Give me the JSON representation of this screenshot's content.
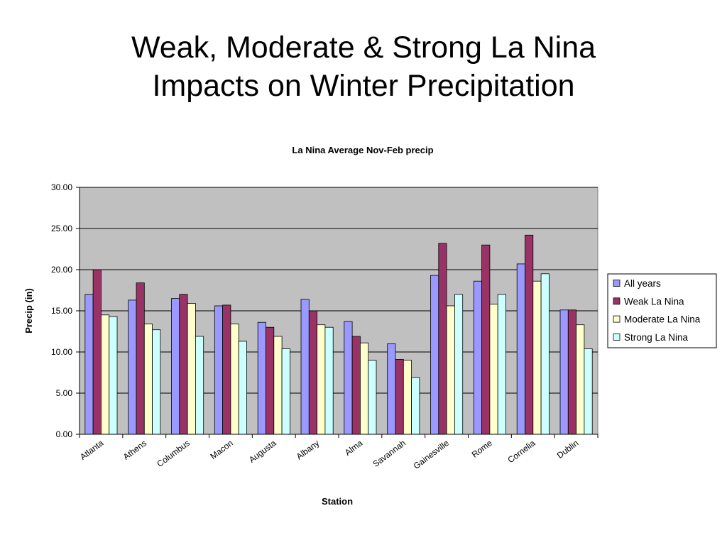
{
  "slide": {
    "title_line1": "Weak, Moderate & Strong La Nina",
    "title_line2": "Impacts on Winter Precipitation"
  },
  "chart_data": {
    "type": "bar",
    "title": "La Nina Average Nov-Feb precip",
    "xlabel": "Station",
    "ylabel": "Precip (in)",
    "ylim": [
      0,
      30
    ],
    "yticks": [
      "0.00",
      "5.00",
      "10.00",
      "15.00",
      "20.00",
      "25.00",
      "30.00"
    ],
    "grid": true,
    "legend_position": "right",
    "plot_background": "#c0c0c0",
    "categories": [
      "Atlanta",
      "Athens",
      "Columbus",
      "Macon",
      "Augusta",
      "Albany",
      "Alma",
      "Savannah",
      "Gainesville",
      "Rome",
      "Cornelia",
      "Dublin"
    ],
    "series": [
      {
        "name": "All years",
        "color": "#9999ff",
        "values": [
          17.0,
          16.3,
          16.5,
          15.6,
          13.6,
          16.4,
          13.7,
          11.0,
          19.3,
          18.6,
          20.7,
          15.1
        ]
      },
      {
        "name": "Weak La Nina",
        "color": "#993366",
        "values": [
          20.0,
          18.4,
          17.0,
          15.7,
          13.0,
          15.0,
          11.9,
          9.1,
          23.2,
          23.0,
          24.2,
          15.1
        ]
      },
      {
        "name": "Moderate La Nina",
        "color": "#ffffcc",
        "values": [
          14.5,
          13.4,
          15.9,
          13.4,
          11.9,
          13.3,
          11.1,
          9.0,
          15.6,
          15.8,
          18.6,
          13.3
        ]
      },
      {
        "name": "Strong La Nina",
        "color": "#ccffff",
        "values": [
          14.3,
          12.7,
          11.9,
          11.3,
          10.4,
          13.0,
          9.0,
          6.9,
          17.0,
          17.0,
          19.5,
          10.4
        ]
      }
    ]
  }
}
